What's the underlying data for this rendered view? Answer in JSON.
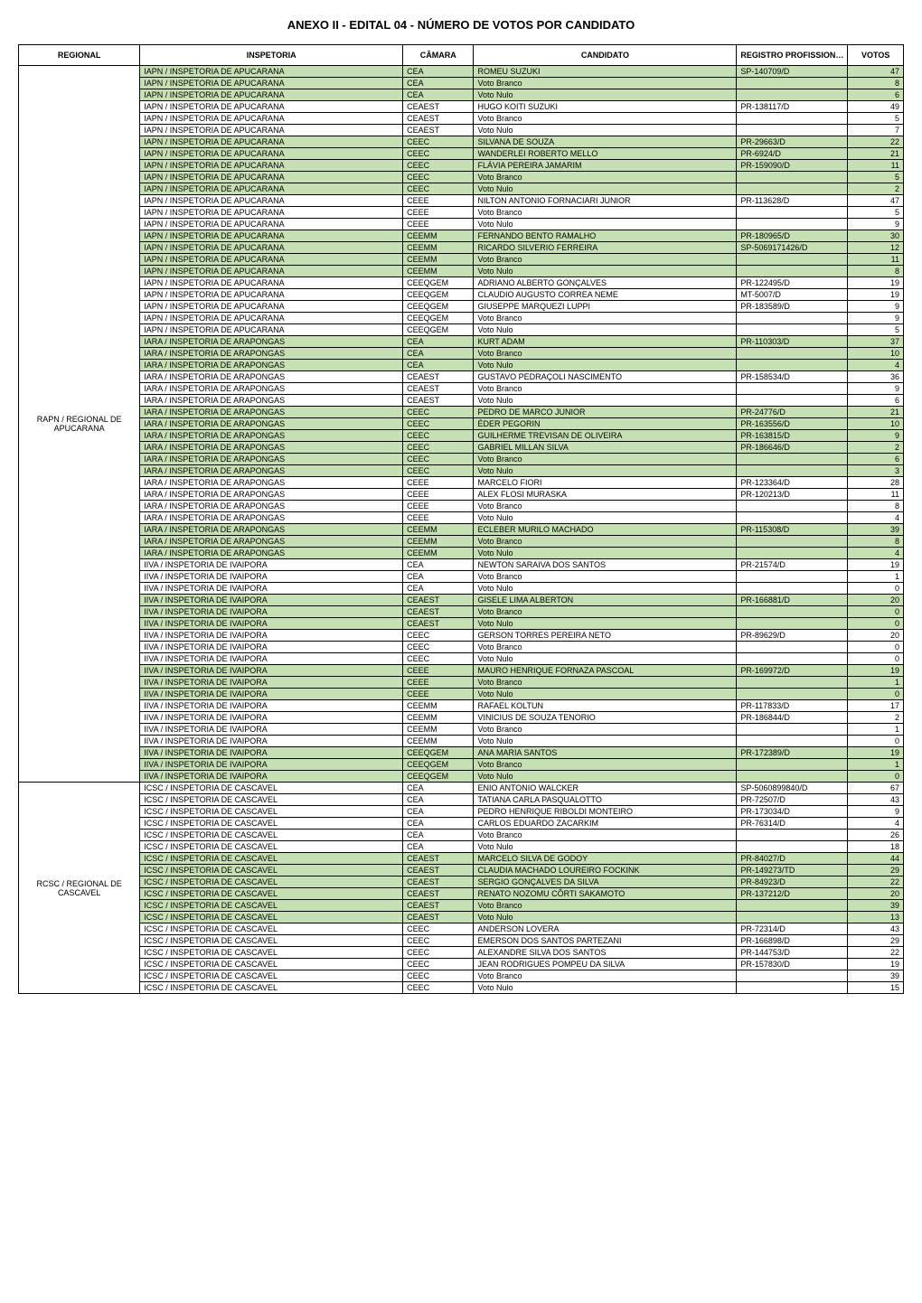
{
  "title": "ANEXO II - EDITAL 04 - NÚMERO DE VOTOS POR CANDIDATO",
  "columns": [
    "REGIONAL",
    "INSPETORIA",
    "CÂMARA",
    "CANDIDATO",
    "REGISTRO PROFISSIONAL",
    "VOTOS"
  ],
  "colors": {
    "highlight": "#c6e0b4",
    "border": "#000000",
    "background": "#ffffff"
  },
  "groups": [
    {
      "regional": "RAPN / REGIONAL DE APUCARANA",
      "rows": [
        {
          "hl": true,
          "insp": "IAPN / INSPETORIA DE APUCARANA",
          "cam": "CEA",
          "cand": "ROMEU SUZUKI",
          "reg": "SP-140709/D",
          "v": 47
        },
        {
          "hl": true,
          "insp": "IAPN / INSPETORIA DE APUCARANA",
          "cam": "CEA",
          "cand": "Voto Branco",
          "reg": "",
          "v": 8
        },
        {
          "hl": true,
          "insp": "IAPN / INSPETORIA DE APUCARANA",
          "cam": "CEA",
          "cand": "Voto Nulo",
          "reg": "",
          "v": 6
        },
        {
          "hl": false,
          "insp": "IAPN / INSPETORIA DE APUCARANA",
          "cam": "CEAEST",
          "cand": "HUGO KOITI SUZUKI",
          "reg": "PR-138117/D",
          "v": 49
        },
        {
          "hl": false,
          "insp": "IAPN / INSPETORIA DE APUCARANA",
          "cam": "CEAEST",
          "cand": "Voto Branco",
          "reg": "",
          "v": 5
        },
        {
          "hl": false,
          "insp": "IAPN / INSPETORIA DE APUCARANA",
          "cam": "CEAEST",
          "cand": "Voto Nulo",
          "reg": "",
          "v": 7
        },
        {
          "hl": true,
          "insp": "IAPN / INSPETORIA DE APUCARANA",
          "cam": "CEEC",
          "cand": "SILVANA DE SOUZA",
          "reg": "PR-29663/D",
          "v": 22
        },
        {
          "hl": true,
          "insp": "IAPN / INSPETORIA DE APUCARANA",
          "cam": "CEEC",
          "cand": "WANDERLEI ROBERTO MELLO",
          "reg": "PR-6924/D",
          "v": 21
        },
        {
          "hl": true,
          "insp": "IAPN / INSPETORIA DE APUCARANA",
          "cam": "CEEC",
          "cand": "FLÁVIA PEREIRA JAMARIM",
          "reg": "PR-159090/D",
          "v": 11
        },
        {
          "hl": true,
          "insp": "IAPN / INSPETORIA DE APUCARANA",
          "cam": "CEEC",
          "cand": "Voto Branco",
          "reg": "",
          "v": 5
        },
        {
          "hl": true,
          "insp": "IAPN / INSPETORIA DE APUCARANA",
          "cam": "CEEC",
          "cand": "Voto Nulo",
          "reg": "",
          "v": 2
        },
        {
          "hl": false,
          "insp": "IAPN / INSPETORIA DE APUCARANA",
          "cam": "CEEE",
          "cand": "NILTON ANTONIO FORNACIARI JUNIOR",
          "reg": "PR-113628/D",
          "v": 47
        },
        {
          "hl": false,
          "insp": "IAPN / INSPETORIA DE APUCARANA",
          "cam": "CEEE",
          "cand": "Voto Branco",
          "reg": "",
          "v": 5
        },
        {
          "hl": false,
          "insp": "IAPN / INSPETORIA DE APUCARANA",
          "cam": "CEEE",
          "cand": "Voto Nulo",
          "reg": "",
          "v": 9
        },
        {
          "hl": true,
          "insp": "IAPN / INSPETORIA DE APUCARANA",
          "cam": "CEEMM",
          "cand": "FERNANDO BENTO RAMALHO",
          "reg": "PR-180965/D",
          "v": 30
        },
        {
          "hl": true,
          "insp": "IAPN / INSPETORIA DE APUCARANA",
          "cam": "CEEMM",
          "cand": "RICARDO SILVERIO FERREIRA",
          "reg": "SP-5069171426/D",
          "v": 12
        },
        {
          "hl": true,
          "insp": "IAPN / INSPETORIA DE APUCARANA",
          "cam": "CEEMM",
          "cand": "Voto Branco",
          "reg": "",
          "v": 11
        },
        {
          "hl": true,
          "insp": "IAPN / INSPETORIA DE APUCARANA",
          "cam": "CEEMM",
          "cand": "Voto Nulo",
          "reg": "",
          "v": 8
        },
        {
          "hl": false,
          "insp": "IAPN / INSPETORIA DE APUCARANA",
          "cam": "CEEQGEM",
          "cand": "ADRIANO ALBERTO GONÇALVES",
          "reg": "PR-122495/D",
          "v": 19
        },
        {
          "hl": false,
          "insp": "IAPN / INSPETORIA DE APUCARANA",
          "cam": "CEEQGEM",
          "cand": "CLAUDIO AUGUSTO CORREA NEME",
          "reg": "MT-5007/D",
          "v": 19
        },
        {
          "hl": false,
          "insp": "IAPN / INSPETORIA DE APUCARANA",
          "cam": "CEEQGEM",
          "cand": "GIUSEPPE MARQUEZI LUPPI",
          "reg": "PR-183589/D",
          "v": 9
        },
        {
          "hl": false,
          "insp": "IAPN / INSPETORIA DE APUCARANA",
          "cam": "CEEQGEM",
          "cand": "Voto Branco",
          "reg": "",
          "v": 9
        },
        {
          "hl": false,
          "insp": "IAPN / INSPETORIA DE APUCARANA",
          "cam": "CEEQGEM",
          "cand": "Voto Nulo",
          "reg": "",
          "v": 5
        },
        {
          "hl": true,
          "insp": "IARA / INSPETORIA DE ARAPONGAS",
          "cam": "CEA",
          "cand": "KURT ADAM",
          "reg": "PR-110303/D",
          "v": 37
        },
        {
          "hl": true,
          "insp": "IARA / INSPETORIA DE ARAPONGAS",
          "cam": "CEA",
          "cand": "Voto Branco",
          "reg": "",
          "v": 10
        },
        {
          "hl": true,
          "insp": "IARA / INSPETORIA DE ARAPONGAS",
          "cam": "CEA",
          "cand": "Voto Nulo",
          "reg": "",
          "v": 4
        },
        {
          "hl": false,
          "insp": "IARA / INSPETORIA DE ARAPONGAS",
          "cam": "CEAEST",
          "cand": "GUSTAVO PEDRAÇOLI NASCIMENTO",
          "reg": "PR-158534/D",
          "v": 36
        },
        {
          "hl": false,
          "insp": "IARA / INSPETORIA DE ARAPONGAS",
          "cam": "CEAEST",
          "cand": "Voto Branco",
          "reg": "",
          "v": 9
        },
        {
          "hl": false,
          "insp": "IARA / INSPETORIA DE ARAPONGAS",
          "cam": "CEAEST",
          "cand": "Voto Nulo",
          "reg": "",
          "v": 6
        },
        {
          "hl": true,
          "insp": "IARA / INSPETORIA DE ARAPONGAS",
          "cam": "CEEC",
          "cand": "PEDRO DE MARCO JUNIOR",
          "reg": "PR-24776/D",
          "v": 21
        },
        {
          "hl": true,
          "insp": "IARA / INSPETORIA DE ARAPONGAS",
          "cam": "CEEC",
          "cand": "ÉDER PEGORIN",
          "reg": "PR-163556/D",
          "v": 10
        },
        {
          "hl": true,
          "insp": "IARA / INSPETORIA DE ARAPONGAS",
          "cam": "CEEC",
          "cand": "GUILHERME TREVISAN DE OLIVEIRA",
          "reg": "PR-163815/D",
          "v": 9
        },
        {
          "hl": true,
          "insp": "IARA / INSPETORIA DE ARAPONGAS",
          "cam": "CEEC",
          "cand": "GABRIEL MILLAN SILVA",
          "reg": "PR-186646/D",
          "v": 2
        },
        {
          "hl": true,
          "insp": "IARA / INSPETORIA DE ARAPONGAS",
          "cam": "CEEC",
          "cand": "Voto Branco",
          "reg": "",
          "v": 6
        },
        {
          "hl": true,
          "insp": "IARA / INSPETORIA DE ARAPONGAS",
          "cam": "CEEC",
          "cand": "Voto Nulo",
          "reg": "",
          "v": 3
        },
        {
          "hl": false,
          "insp": "IARA / INSPETORIA DE ARAPONGAS",
          "cam": "CEEE",
          "cand": "MARCELO FIORI",
          "reg": "PR-123364/D",
          "v": 28
        },
        {
          "hl": false,
          "insp": "IARA / INSPETORIA DE ARAPONGAS",
          "cam": "CEEE",
          "cand": "ALEX FLOSI MURASKA",
          "reg": "PR-120213/D",
          "v": 11
        },
        {
          "hl": false,
          "insp": "IARA / INSPETORIA DE ARAPONGAS",
          "cam": "CEEE",
          "cand": "Voto Branco",
          "reg": "",
          "v": 8
        },
        {
          "hl": false,
          "insp": "IARA / INSPETORIA DE ARAPONGAS",
          "cam": "CEEE",
          "cand": "Voto Nulo",
          "reg": "",
          "v": 4
        },
        {
          "hl": true,
          "insp": "IARA / INSPETORIA DE ARAPONGAS",
          "cam": "CEEMM",
          "cand": "ECLEBER MURILO MACHADO",
          "reg": "PR-115308/D",
          "v": 39
        },
        {
          "hl": true,
          "insp": "IARA / INSPETORIA DE ARAPONGAS",
          "cam": "CEEMM",
          "cand": "Voto Branco",
          "reg": "",
          "v": 8
        },
        {
          "hl": true,
          "insp": "IARA / INSPETORIA DE ARAPONGAS",
          "cam": "CEEMM",
          "cand": "Voto Nulo",
          "reg": "",
          "v": 4
        },
        {
          "hl": false,
          "insp": "IIVA / INSPETORIA DE IVAIPORA",
          "cam": "CEA",
          "cand": "NEWTON SARAIVA DOS SANTOS",
          "reg": "PR-21574/D",
          "v": 19
        },
        {
          "hl": false,
          "insp": "IIVA / INSPETORIA DE IVAIPORA",
          "cam": "CEA",
          "cand": "Voto Branco",
          "reg": "",
          "v": 1
        },
        {
          "hl": false,
          "insp": "IIVA / INSPETORIA DE IVAIPORA",
          "cam": "CEA",
          "cand": "Voto Nulo",
          "reg": "",
          "v": 0
        },
        {
          "hl": true,
          "insp": "IIVA / INSPETORIA DE IVAIPORA",
          "cam": "CEAEST",
          "cand": "GISELE LIMA ALBERTON",
          "reg": "PR-166881/D",
          "v": 20
        },
        {
          "hl": true,
          "insp": "IIVA / INSPETORIA DE IVAIPORA",
          "cam": "CEAEST",
          "cand": "Voto Branco",
          "reg": "",
          "v": 0
        },
        {
          "hl": true,
          "insp": "IIVA / INSPETORIA DE IVAIPORA",
          "cam": "CEAEST",
          "cand": "Voto Nulo",
          "reg": "",
          "v": 0
        },
        {
          "hl": false,
          "insp": "IIVA / INSPETORIA DE IVAIPORA",
          "cam": "CEEC",
          "cand": "GERSON TORRES PEREIRA NETO",
          "reg": "PR-89629/D",
          "v": 20
        },
        {
          "hl": false,
          "insp": "IIVA / INSPETORIA DE IVAIPORA",
          "cam": "CEEC",
          "cand": "Voto Branco",
          "reg": "",
          "v": 0
        },
        {
          "hl": false,
          "insp": "IIVA / INSPETORIA DE IVAIPORA",
          "cam": "CEEC",
          "cand": "Voto Nulo",
          "reg": "",
          "v": 0
        },
        {
          "hl": true,
          "insp": "IIVA / INSPETORIA DE IVAIPORA",
          "cam": "CEEE",
          "cand": "MAURO HENRIQUE FORNAZA PASCOAL",
          "reg": "PR-169972/D",
          "v": 19
        },
        {
          "hl": true,
          "insp": "IIVA / INSPETORIA DE IVAIPORA",
          "cam": "CEEE",
          "cand": "Voto Branco",
          "reg": "",
          "v": 1
        },
        {
          "hl": true,
          "insp": "IIVA / INSPETORIA DE IVAIPORA",
          "cam": "CEEE",
          "cand": "Voto Nulo",
          "reg": "",
          "v": 0
        },
        {
          "hl": false,
          "insp": "IIVA / INSPETORIA DE IVAIPORA",
          "cam": "CEEMM",
          "cand": "RAFAEL KOLTUN",
          "reg": "PR-117833/D",
          "v": 17
        },
        {
          "hl": false,
          "insp": "IIVA / INSPETORIA DE IVAIPORA",
          "cam": "CEEMM",
          "cand": "VINICIUS DE SOUZA TENORIO",
          "reg": "PR-186844/D",
          "v": 2
        },
        {
          "hl": false,
          "insp": "IIVA / INSPETORIA DE IVAIPORA",
          "cam": "CEEMM",
          "cand": "Voto Branco",
          "reg": "",
          "v": 1
        },
        {
          "hl": false,
          "insp": "IIVA / INSPETORIA DE IVAIPORA",
          "cam": "CEEMM",
          "cand": "Voto Nulo",
          "reg": "",
          "v": 0
        },
        {
          "hl": true,
          "insp": "IIVA / INSPETORIA DE IVAIPORA",
          "cam": "CEEQGEM",
          "cand": "ANA MARIA SANTOS",
          "reg": "PR-172389/D",
          "v": 19
        },
        {
          "hl": true,
          "insp": "IIVA / INSPETORIA DE IVAIPORA",
          "cam": "CEEQGEM",
          "cand": "Voto Branco",
          "reg": "",
          "v": 1
        },
        {
          "hl": true,
          "insp": "IIVA / INSPETORIA DE IVAIPORA",
          "cam": "CEEQGEM",
          "cand": "Voto Nulo",
          "reg": "",
          "v": 0
        }
      ]
    },
    {
      "regional": "RCSC / REGIONAL DE CASCAVEL",
      "rows": [
        {
          "hl": false,
          "insp": "ICSC / INSPETORIA DE CASCAVEL",
          "cam": "CEA",
          "cand": "ENIO ANTONIO WALCKER",
          "reg": "SP-5060899840/D",
          "v": 67
        },
        {
          "hl": false,
          "insp": "ICSC / INSPETORIA DE CASCAVEL",
          "cam": "CEA",
          "cand": "TATIANA CARLA PASQUALOTTO",
          "reg": "PR-72507/D",
          "v": 43
        },
        {
          "hl": false,
          "insp": "ICSC / INSPETORIA DE CASCAVEL",
          "cam": "CEA",
          "cand": "PEDRO HENRIQUE RIBOLDI MONTEIRO",
          "reg": "PR-173034/D",
          "v": 9
        },
        {
          "hl": false,
          "insp": "ICSC / INSPETORIA DE CASCAVEL",
          "cam": "CEA",
          "cand": "CARLOS EDUARDO ZACARKIM",
          "reg": "PR-76314/D",
          "v": 4
        },
        {
          "hl": false,
          "insp": "ICSC / INSPETORIA DE CASCAVEL",
          "cam": "CEA",
          "cand": "Voto Branco",
          "reg": "",
          "v": 26
        },
        {
          "hl": false,
          "insp": "ICSC / INSPETORIA DE CASCAVEL",
          "cam": "CEA",
          "cand": "Voto Nulo",
          "reg": "",
          "v": 18
        },
        {
          "hl": true,
          "insp": "ICSC / INSPETORIA DE CASCAVEL",
          "cam": "CEAEST",
          "cand": "MARCELO SILVA DE GODOY",
          "reg": "PR-84027/D",
          "v": 44
        },
        {
          "hl": true,
          "insp": "ICSC / INSPETORIA DE CASCAVEL",
          "cam": "CEAEST",
          "cand": "CLAUDIA MACHADO LOUREIRO FOCKINK",
          "reg": "PR-149273/TD",
          "v": 29
        },
        {
          "hl": true,
          "insp": "ICSC / INSPETORIA DE CASCAVEL",
          "cam": "CEAEST",
          "cand": "SERGIO GONÇALVES DA SILVA",
          "reg": "PR-84923/D",
          "v": 22
        },
        {
          "hl": true,
          "insp": "ICSC / INSPETORIA DE CASCAVEL",
          "cam": "CEAEST",
          "cand": "RENATO NOZOMU CÔRTI SAKAMOTO",
          "reg": "PR-137212/D",
          "v": 20
        },
        {
          "hl": true,
          "insp": "ICSC / INSPETORIA DE CASCAVEL",
          "cam": "CEAEST",
          "cand": "Voto Branco",
          "reg": "",
          "v": 39
        },
        {
          "hl": true,
          "insp": "ICSC / INSPETORIA DE CASCAVEL",
          "cam": "CEAEST",
          "cand": "Voto Nulo",
          "reg": "",
          "v": 13
        },
        {
          "hl": false,
          "insp": "ICSC / INSPETORIA DE CASCAVEL",
          "cam": "CEEC",
          "cand": "ANDERSON LOVERA",
          "reg": "PR-72314/D",
          "v": 43
        },
        {
          "hl": false,
          "insp": "ICSC / INSPETORIA DE CASCAVEL",
          "cam": "CEEC",
          "cand": "EMERSON DOS SANTOS PARTEZANI",
          "reg": "PR-166898/D",
          "v": 29
        },
        {
          "hl": false,
          "insp": "ICSC / INSPETORIA DE CASCAVEL",
          "cam": "CEEC",
          "cand": "ALEXANDRE SILVA DOS SANTOS",
          "reg": "PR-144753/D",
          "v": 22
        },
        {
          "hl": false,
          "insp": "ICSC / INSPETORIA DE CASCAVEL",
          "cam": "CEEC",
          "cand": "JEAN RODRIGUES POMPEU DA SILVA",
          "reg": "PR-157830/D",
          "v": 19
        },
        {
          "hl": false,
          "insp": "ICSC / INSPETORIA DE CASCAVEL",
          "cam": "CEEC",
          "cand": "Voto Branco",
          "reg": "",
          "v": 39
        },
        {
          "hl": false,
          "insp": "ICSC / INSPETORIA DE CASCAVEL",
          "cam": "CEEC",
          "cand": "Voto Nulo",
          "reg": "",
          "v": 15
        }
      ]
    }
  ]
}
